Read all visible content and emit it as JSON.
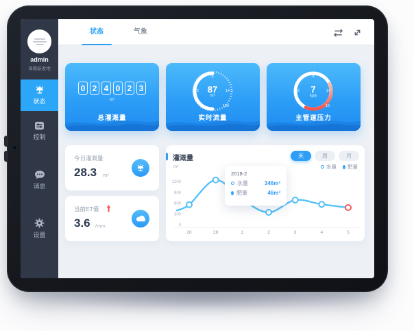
{
  "sidebar": {
    "user": {
      "name": "admin",
      "org": "海南新发地"
    },
    "items": [
      {
        "label": "状态",
        "icon": "sprinkler-icon",
        "active": true
      },
      {
        "label": "控制",
        "icon": "sliders-icon",
        "active": false
      },
      {
        "label": "消息",
        "icon": "chat-icon",
        "active": false
      },
      {
        "label": "设置",
        "icon": "gear-icon",
        "active": false
      }
    ]
  },
  "topbar": {
    "tabs": [
      {
        "label": "状态",
        "active": true
      },
      {
        "label": "气象",
        "active": false
      }
    ],
    "icons": [
      "swap-icon",
      "expand-icon"
    ]
  },
  "stat_cards": {
    "total_flow": {
      "label": "总灌溉量",
      "digits": [
        "0",
        "2",
        "4",
        "0",
        "2",
        "3"
      ],
      "unit": "m³"
    },
    "realtime_flow": {
      "label": "实时流量",
      "value": "87",
      "unit": "m³",
      "ticks": [
        "0",
        "2",
        "8",
        "14",
        "100"
      ]
    },
    "pipe_pressure": {
      "label": "主管道压力",
      "value": "7",
      "unit": "kpa",
      "ticks": [
        "0",
        "2",
        "8",
        "14",
        "16"
      ]
    }
  },
  "mini_cards": {
    "today": {
      "label": "今日灌溉量",
      "value": "28.3",
      "unit": "m³",
      "icon": "sprinkler-badge-icon"
    },
    "et": {
      "label": "当前ET值",
      "value": "3.6",
      "unit": "/mm",
      "icon": "cloud-badge-icon",
      "trend": "up"
    }
  },
  "chart_card": {
    "title": "灌溉量",
    "unit": "m³",
    "range_tabs": [
      {
        "label": "天",
        "active": true
      },
      {
        "label": "周",
        "active": false
      },
      {
        "label": "月",
        "active": false
      }
    ],
    "legend": [
      {
        "label": "水量",
        "marker": "circle"
      },
      {
        "label": "肥量",
        "marker": "droplet"
      }
    ],
    "tooltip": {
      "title": "2018-2",
      "rows": [
        {
          "label": "水量",
          "value": "346m³",
          "marker": "circle"
        },
        {
          "label": "肥量",
          "value": "46m³",
          "marker": "droplet"
        }
      ]
    }
  },
  "chart_data": {
    "type": "line",
    "title": "灌溉量",
    "ylabel": "m³",
    "x": [
      "20",
      "29",
      "1",
      "2",
      "3",
      "4",
      "5"
    ],
    "series": [
      {
        "name": "水量",
        "values": [
          560,
          1250,
          700,
          346,
          690,
          570,
          480
        ]
      }
    ],
    "edge_start_value": 400,
    "yticks": [
      0,
      300,
      600,
      900,
      1200
    ],
    "ylim": [
      0,
      1300
    ],
    "marker_indices": [
      0,
      1,
      3,
      4,
      5,
      6
    ],
    "highlight_index": 6,
    "legend_position": "top-right",
    "grid": false
  },
  "colors": {
    "accent": "#2f9ff6",
    "line": "#55c1f9",
    "danger": "#f15b5b",
    "sidebar_bg": "#303848",
    "active_item": "#2ca6f7",
    "card_gradient_top": "#4dbafb",
    "card_gradient_bottom": "#1e8cf2",
    "content_bg": "#edf1f6",
    "text_dark": "#2b3850",
    "text_gray": "#97a1b1"
  }
}
